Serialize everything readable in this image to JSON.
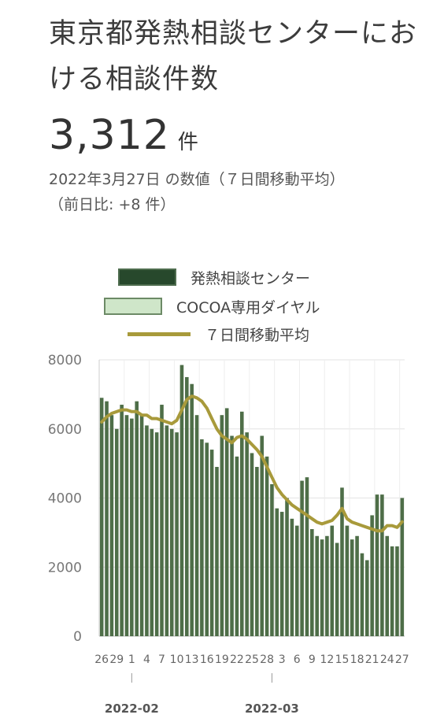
{
  "header": {
    "title": "東京都発熱相談センターにおける相談件数",
    "value": "3,312",
    "unit": "件",
    "date_note": "2022年3月27日 の数値（７日間移動平均）",
    "diff_note": "（前日比: +8 件）"
  },
  "legend": {
    "center": "発熱相談センター",
    "cocoa": "COCOA専用ダイヤル",
    "avg": "７日間移動平均"
  },
  "colors": {
    "center_bar": "#4e6e48",
    "cocoa_bar": "#cfe6c9",
    "avg_line": "#a89a3b",
    "grid": "#e3e3e3"
  },
  "chart_data": {
    "type": "bar",
    "title": "",
    "xlabel": "",
    "ylabel": "",
    "ylim": [
      0,
      8000
    ],
    "yticks": [
      "0",
      "2000",
      "4000",
      "6000",
      "8000"
    ],
    "x_tick_labels": [
      "26",
      "29",
      "1",
      "4",
      "7",
      "10",
      "13",
      "16",
      "19",
      "22",
      "25",
      "28",
      "3",
      "6",
      "9",
      "12",
      "15",
      "18",
      "21",
      "24",
      "27"
    ],
    "month_labels": [
      "2022-02",
      "2022-03"
    ],
    "categories": [
      "1/26",
      "1/27",
      "1/28",
      "1/29",
      "1/30",
      "1/31",
      "2/1",
      "2/2",
      "2/3",
      "2/4",
      "2/5",
      "2/6",
      "2/7",
      "2/8",
      "2/9",
      "2/10",
      "2/11",
      "2/12",
      "2/13",
      "2/14",
      "2/15",
      "2/16",
      "2/17",
      "2/18",
      "2/19",
      "2/20",
      "2/21",
      "2/22",
      "2/23",
      "2/24",
      "2/25",
      "2/26",
      "2/27",
      "2/28",
      "3/1",
      "3/2",
      "3/3",
      "3/4",
      "3/5",
      "3/6",
      "3/7",
      "3/8",
      "3/9",
      "3/10",
      "3/11",
      "3/12",
      "3/13",
      "3/14",
      "3/15",
      "3/16",
      "3/17",
      "3/18",
      "3/19",
      "3/20",
      "3/21",
      "3/22",
      "3/23",
      "3/24",
      "3/25",
      "3/26",
      "3/27"
    ],
    "series": [
      {
        "name": "発熱相談センター",
        "values": [
          6900,
          6800,
          6400,
          6000,
          6700,
          6400,
          6300,
          6800,
          6400,
          6100,
          6000,
          5900,
          6700,
          6100,
          6000,
          5900,
          7850,
          7500,
          7300,
          6400,
          5700,
          5600,
          5400,
          4900,
          6400,
          6600,
          5800,
          5200,
          6500,
          5900,
          5300,
          4900,
          5800,
          5200,
          4400,
          3700,
          3600,
          4000,
          3400,
          3200,
          4500,
          4600,
          3100,
          2900,
          2800,
          2900,
          3200,
          2700,
          4300,
          3200,
          2800,
          2900,
          2400,
          2200,
          3500,
          4100,
          4100,
          2900,
          2600,
          2600,
          4000
        ],
        "values_last_bar_note": ""
      },
      {
        "name": "COCOA専用ダイヤル",
        "values": [
          0,
          0,
          0,
          0,
          0,
          0,
          0,
          0,
          0,
          0,
          0,
          0,
          0,
          0,
          0,
          0,
          0,
          0,
          0,
          0,
          0,
          0,
          0,
          0,
          0,
          0,
          0,
          0,
          0,
          0,
          0,
          0,
          0,
          0,
          0,
          0,
          0,
          0,
          0,
          0,
          0,
          0,
          0,
          0,
          0,
          0,
          0,
          0,
          0,
          0,
          0,
          0,
          0,
          0,
          0,
          0,
          0,
          0,
          0,
          0,
          0
        ]
      },
      {
        "name": "７日間移動平均",
        "type": "line",
        "values": [
          6200,
          6350,
          6450,
          6500,
          6550,
          6550,
          6500,
          6500,
          6400,
          6400,
          6300,
          6300,
          6250,
          6200,
          6150,
          6250,
          6550,
          6850,
          6950,
          6900,
          6800,
          6600,
          6300,
          6000,
          5800,
          5700,
          5600,
          5750,
          5800,
          5700,
          5550,
          5400,
          5200,
          4900,
          4600,
          4300,
          4100,
          3950,
          3800,
          3700,
          3600,
          3500,
          3400,
          3300,
          3250,
          3300,
          3350,
          3500,
          3700,
          3400,
          3300,
          3250,
          3200,
          3150,
          3100,
          3050,
          3050,
          3200,
          3200,
          3150,
          3312
        ]
      }
    ],
    "grid": true,
    "legend_position": "top"
  }
}
